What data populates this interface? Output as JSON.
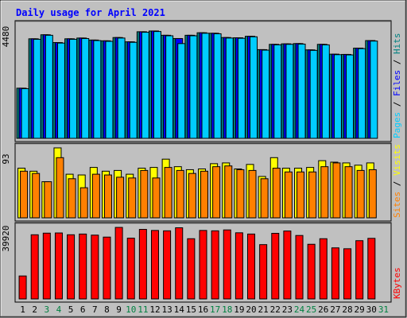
{
  "chart_data": {
    "type": "bar",
    "title": "Daily usage for April 2021",
    "x": [
      "1",
      "2",
      "3",
      "4",
      "5",
      "6",
      "7",
      "8",
      "9",
      "10",
      "11",
      "12",
      "13",
      "14",
      "15",
      "16",
      "17",
      "18",
      "19",
      "20",
      "21",
      "22",
      "23",
      "24",
      "25",
      "26",
      "27",
      "28",
      "29",
      "30",
      "31"
    ],
    "weekend_days": [
      "3",
      "4",
      "10",
      "11",
      "17",
      "18",
      "24",
      "25",
      "31"
    ],
    "colors": {
      "background": "#c0c0c0",
      "plot_background": "#c0c0c0",
      "title": "#0000ff",
      "day_label": "#000000",
      "weekend_label": "#008040",
      "hits": "#008080",
      "files": "#0000ff",
      "pages": "#00ccff",
      "visits": "#ffff00",
      "sites": "#ff8000",
      "kbytes": "#ff0000",
      "separator": "#000000"
    },
    "panels": [
      {
        "id": "hits",
        "ymax": 4480,
        "ymax_label": "4480",
        "legend": [
          {
            "name": "Pages",
            "color": "#00ccff"
          },
          {
            "name": "Files",
            "color": "#0000ff"
          },
          {
            "name": "Hits",
            "color": "#008080"
          }
        ],
        "series": [
          {
            "name": "Hits",
            "color": "#008080",
            "values": [
              1990,
              3950,
              4110,
              3800,
              3950,
              3980,
              3900,
              3870,
              4000,
              3830,
              4230,
              4260,
              4090,
              3960,
              4090,
              4190,
              4170,
              4000,
              3990,
              4050,
              3520,
              3730,
              3750,
              3760,
              3510,
              3730,
              3340,
              3330,
              3580,
              3880,
              0
            ]
          },
          {
            "name": "Files",
            "color": "#0000ff",
            "values": [
              1990,
              3950,
              4110,
              3800,
              3950,
              3980,
              3900,
              3870,
              4000,
              3830,
              4230,
              4260,
              4090,
              3960,
              4090,
              4190,
              4170,
              4000,
              3990,
              4050,
              3520,
              3730,
              3750,
              3760,
              3510,
              3730,
              3340,
              3330,
              3580,
              3880,
              0
            ]
          },
          {
            "name": "Pages",
            "color": "#00ccff",
            "values": [
              1970,
              3930,
              4090,
              3780,
              3930,
              3960,
              3880,
              3850,
              3980,
              3810,
              4210,
              4240,
              4070,
              3760,
              4070,
              4170,
              4150,
              3980,
              3970,
              4030,
              3500,
              3710,
              3730,
              3740,
              3490,
              3710,
              3320,
              3310,
              3560,
              3860,
              0
            ]
          }
        ]
      },
      {
        "id": "visits",
        "ymax": 93,
        "ymax_label": "93",
        "legend": [
          {
            "name": "Sites",
            "color": "#ff8000"
          },
          {
            "name": "Visits",
            "color": "#ffff00"
          }
        ],
        "series": [
          {
            "name": "Visits",
            "color": "#ffff00",
            "values": [
              66,
              62,
              48,
              93,
              58,
              57,
              67,
              62,
              63,
              58,
              66,
              67,
              78,
              68,
              64,
              65,
              72,
              73,
              65,
              71,
              55,
              80,
              66,
              66,
              67,
              76,
              74,
              73,
              70,
              73,
              0
            ]
          },
          {
            "name": "Sites",
            "color": "#ff8000",
            "values": [
              62,
              59,
              48,
              80,
              52,
              40,
              58,
              57,
              54,
              53,
              63,
              53,
              67,
              63,
              59,
              62,
              68,
              69,
              64,
              63,
              52,
              66,
              61,
              61,
              61,
              68,
              73,
              68,
              63,
              64,
              0
            ]
          }
        ]
      },
      {
        "id": "kbytes",
        "ymax": 39920,
        "ymax_label": "39920",
        "legend": [
          {
            "name": "KBytes",
            "color": "#ff0000"
          }
        ],
        "series": [
          {
            "name": "KBytes",
            "color": "#ff0000",
            "values": [
              12800,
              35800,
              36700,
              36800,
              35800,
              36200,
              35600,
              34500,
              39900,
              33900,
              38800,
              38200,
              38000,
              39700,
              33600,
              38200,
              38000,
              38500,
              36900,
              36200,
              30300,
              36600,
              37900,
              35400,
              30500,
              33600,
              28500,
              28000,
              32500,
              33800,
              0
            ]
          }
        ]
      }
    ]
  }
}
